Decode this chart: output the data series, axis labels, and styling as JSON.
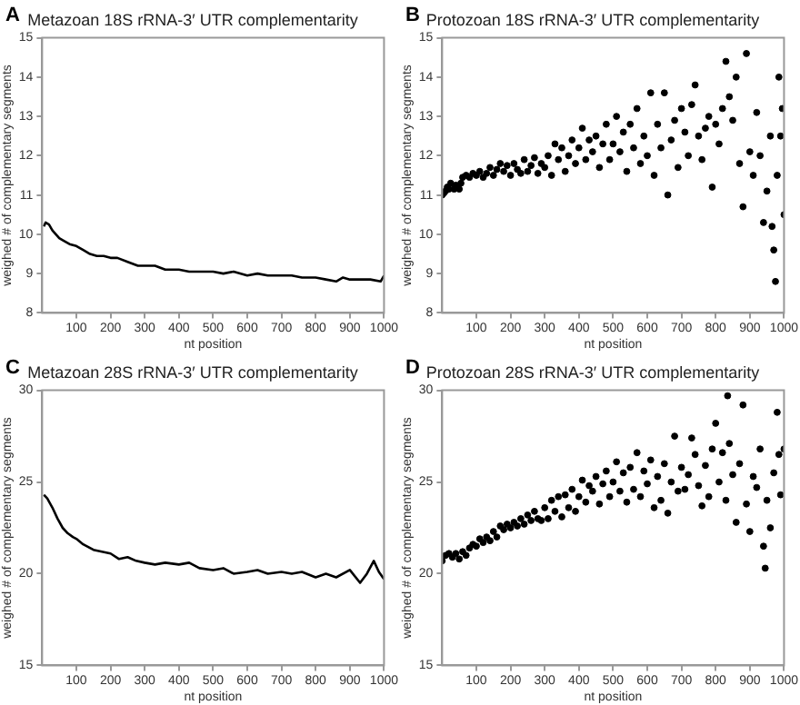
{
  "chart_data": [
    {
      "type": "line",
      "title": "Metazoan 18S rRNA-3′ UTR complementarity",
      "xlabel": "nt position",
      "ylabel": "weighed # of complementary segments",
      "annotations": [
        "A"
      ],
      "color": "#000000",
      "marker": "none",
      "line_style": "solid",
      "grid": false,
      "xlim": [
        0,
        1000
      ],
      "xticks": [
        100,
        200,
        300,
        400,
        500,
        600,
        700,
        800,
        900,
        1000
      ],
      "ylim": [
        8,
        15
      ],
      "yticks": [
        8,
        9,
        10,
        11,
        12,
        13,
        14,
        15
      ],
      "x": [
        5,
        10,
        20,
        30,
        40,
        50,
        60,
        80,
        100,
        120,
        140,
        160,
        180,
        200,
        220,
        250,
        280,
        300,
        330,
        360,
        400,
        430,
        460,
        500,
        530,
        560,
        600,
        630,
        660,
        700,
        730,
        760,
        800,
        830,
        860,
        880,
        900,
        930,
        960,
        990,
        1000
      ],
      "values": [
        10.2,
        10.3,
        10.25,
        10.1,
        10.0,
        9.9,
        9.85,
        9.75,
        9.7,
        9.6,
        9.5,
        9.45,
        9.45,
        9.4,
        9.4,
        9.3,
        9.2,
        9.2,
        9.2,
        9.1,
        9.1,
        9.05,
        9.05,
        9.05,
        9.0,
        9.05,
        8.95,
        9.0,
        8.95,
        8.95,
        8.95,
        8.9,
        8.9,
        8.85,
        8.8,
        8.9,
        8.85,
        8.85,
        8.85,
        8.8,
        8.95
      ]
    },
    {
      "type": "scatter",
      "title": "Protozoan 18S rRNA-3′ UTR complementarity",
      "xlabel": "nt position",
      "ylabel": "weighed # of complementary segments",
      "annotations": [
        "B"
      ],
      "color": "#000000",
      "marker": "circle",
      "grid": false,
      "xlim": [
        0,
        1000
      ],
      "xticks": [
        100,
        200,
        300,
        400,
        500,
        600,
        700,
        800,
        900,
        1000
      ],
      "ylim": [
        8,
        15
      ],
      "yticks": [
        8,
        9,
        10,
        11,
        12,
        13,
        14,
        15
      ],
      "x": [
        0,
        5,
        10,
        15,
        20,
        25,
        35,
        40,
        50,
        55,
        60,
        70,
        80,
        90,
        100,
        110,
        120,
        130,
        140,
        150,
        160,
        170,
        180,
        190,
        200,
        210,
        220,
        230,
        240,
        250,
        260,
        270,
        280,
        290,
        300,
        310,
        320,
        330,
        340,
        350,
        360,
        370,
        380,
        390,
        400,
        410,
        420,
        430,
        440,
        450,
        460,
        470,
        480,
        490,
        500,
        510,
        520,
        530,
        540,
        550,
        560,
        570,
        580,
        590,
        600,
        610,
        620,
        630,
        640,
        650,
        660,
        670,
        680,
        690,
        700,
        710,
        720,
        730,
        740,
        750,
        760,
        770,
        780,
        790,
        800,
        810,
        820,
        830,
        840,
        850,
        860,
        870,
        880,
        890,
        900,
        910,
        920,
        930,
        940,
        950,
        960,
        965,
        970,
        975,
        980,
        985,
        990,
        995,
        1000
      ],
      "values": [
        11.0,
        11.05,
        11.1,
        11.2,
        11.15,
        11.3,
        11.15,
        11.25,
        11.15,
        11.3,
        11.45,
        11.5,
        11.45,
        11.55,
        11.5,
        11.6,
        11.45,
        11.55,
        11.7,
        11.5,
        11.65,
        11.8,
        11.6,
        11.75,
        11.5,
        11.8,
        11.65,
        11.55,
        11.9,
        11.6,
        11.75,
        11.95,
        11.55,
        11.8,
        11.7,
        12.0,
        11.5,
        12.3,
        11.9,
        12.2,
        11.6,
        12.0,
        12.4,
        11.8,
        12.2,
        12.7,
        11.9,
        12.4,
        12.1,
        12.5,
        11.7,
        12.3,
        12.8,
        11.9,
        12.3,
        13.0,
        12.1,
        12.6,
        11.6,
        12.8,
        12.2,
        13.2,
        11.8,
        12.5,
        12.0,
        13.6,
        11.5,
        12.8,
        12.2,
        13.6,
        11.0,
        12.4,
        12.9,
        11.7,
        13.2,
        12.6,
        12.0,
        13.3,
        13.8,
        12.5,
        11.9,
        12.7,
        13.0,
        11.2,
        12.8,
        12.3,
        13.2,
        14.4,
        13.5,
        12.9,
        14.0,
        11.8,
        10.7,
        14.6,
        12.1,
        11.5,
        13.1,
        12.0,
        10.3,
        11.1,
        12.5,
        10.2,
        9.6,
        8.8,
        11.5,
        14.0,
        12.5,
        13.2,
        10.5
      ]
    },
    {
      "type": "line",
      "title": "Metazoan 28S rRNA-3′ UTR complementarity",
      "xlabel": "nt position",
      "ylabel": "weighed # of complementary segments",
      "annotations": [
        "C"
      ],
      "color": "#000000",
      "marker": "none",
      "line_style": "solid",
      "grid": false,
      "xlim": [
        0,
        1000
      ],
      "xticks": [
        100,
        200,
        300,
        400,
        500,
        600,
        700,
        800,
        900,
        1000
      ],
      "ylim": [
        15,
        30
      ],
      "yticks": [
        15,
        20,
        25,
        30
      ],
      "x": [
        5,
        15,
        30,
        45,
        60,
        75,
        90,
        100,
        120,
        150,
        175,
        200,
        225,
        250,
        275,
        300,
        330,
        360,
        400,
        430,
        460,
        500,
        530,
        560,
        600,
        630,
        660,
        700,
        730,
        760,
        800,
        830,
        860,
        900,
        930,
        950,
        970,
        985,
        1000
      ],
      "values": [
        24.3,
        24.1,
        23.6,
        23.0,
        22.5,
        22.2,
        22.0,
        21.9,
        21.6,
        21.3,
        21.2,
        21.1,
        20.8,
        20.9,
        20.7,
        20.6,
        20.5,
        20.6,
        20.5,
        20.6,
        20.3,
        20.2,
        20.3,
        20.0,
        20.1,
        20.2,
        20.0,
        20.1,
        20.0,
        20.1,
        19.8,
        20.0,
        19.8,
        20.2,
        19.5,
        20.0,
        20.7,
        20.1,
        19.7
      ]
    },
    {
      "type": "scatter",
      "title": "Protozoan 28S rRNA-3′ UTR complementarity",
      "xlabel": "nt position",
      "ylabel": "weighed # of complementary segments",
      "annotations": [
        "D"
      ],
      "color": "#000000",
      "marker": "circle",
      "grid": false,
      "xlim": [
        0,
        1000
      ],
      "xticks": [
        100,
        200,
        300,
        400,
        500,
        600,
        700,
        800,
        900,
        1000
      ],
      "ylim": [
        15,
        30
      ],
      "yticks": [
        15,
        20,
        25,
        30
      ],
      "x": [
        0,
        10,
        20,
        30,
        40,
        50,
        60,
        70,
        80,
        90,
        100,
        110,
        120,
        130,
        140,
        150,
        160,
        170,
        180,
        190,
        200,
        210,
        220,
        230,
        240,
        250,
        260,
        270,
        280,
        290,
        300,
        310,
        320,
        330,
        340,
        350,
        360,
        370,
        380,
        390,
        400,
        410,
        420,
        430,
        440,
        450,
        460,
        470,
        480,
        490,
        500,
        510,
        520,
        530,
        540,
        550,
        560,
        570,
        580,
        590,
        600,
        610,
        620,
        630,
        640,
        650,
        660,
        670,
        680,
        690,
        700,
        710,
        720,
        730,
        740,
        750,
        760,
        770,
        780,
        790,
        800,
        810,
        820,
        830,
        835,
        840,
        850,
        860,
        870,
        880,
        890,
        900,
        910,
        920,
        930,
        940,
        945,
        950,
        960,
        970,
        980,
        985,
        990,
        1000
      ],
      "values": [
        20.7,
        21.0,
        21.1,
        20.9,
        21.1,
        20.8,
        21.2,
        21.0,
        21.4,
        21.6,
        21.5,
        21.9,
        21.7,
        22.0,
        21.8,
        22.3,
        22.0,
        22.6,
        22.4,
        22.7,
        22.5,
        22.8,
        22.6,
        23.0,
        22.7,
        23.2,
        22.9,
        23.4,
        23.0,
        22.9,
        23.6,
        23.0,
        24.0,
        23.4,
        24.2,
        23.1,
        24.3,
        23.6,
        24.6,
        23.4,
        24.2,
        25.1,
        23.9,
        24.8,
        24.5,
        25.3,
        23.8,
        24.9,
        25.6,
        24.2,
        25.0,
        26.1,
        24.5,
        25.5,
        23.9,
        25.8,
        24.6,
        26.6,
        24.2,
        25.6,
        24.9,
        26.2,
        23.6,
        25.3,
        24.0,
        26.0,
        23.3,
        25.0,
        27.5,
        24.5,
        25.8,
        24.6,
        25.4,
        27.4,
        26.5,
        24.8,
        23.7,
        25.9,
        24.2,
        26.8,
        28.2,
        25.0,
        26.6,
        24.0,
        29.7,
        27.1,
        25.4,
        22.8,
        26.0,
        29.2,
        23.8,
        22.3,
        25.3,
        24.7,
        26.8,
        21.5,
        20.3,
        24.0,
        22.5,
        25.5,
        28.8,
        26.5,
        24.3,
        26.8
      ]
    }
  ]
}
